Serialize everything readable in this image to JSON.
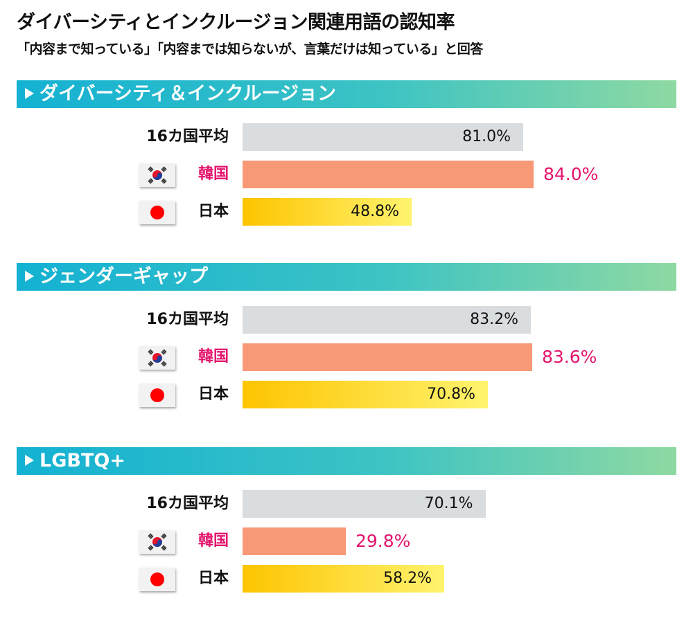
{
  "title": "ダイバーシティとインクルージョン関連用語の認知率",
  "subtitle": "「内容まで知っている」「内容までは知らないが、言葉だけは知っている」と回答",
  "colors": {
    "average": "#d9dde0",
    "korea": "#f79877",
    "japan_from": "#fdc400",
    "japan_to": "#fff36e",
    "korea_text": "#e4136c"
  },
  "chart_data": [
    {
      "type": "bar",
      "title": "ダイバーシティ＆インクルージョン",
      "categories": [
        "16カ国平均",
        "韓国",
        "日本"
      ],
      "values": [
        81.0,
        84.0,
        48.8
      ],
      "unit": "%"
    },
    {
      "type": "bar",
      "title": "ジェンダーギャップ",
      "categories": [
        "16カ国平均",
        "韓国",
        "日本"
      ],
      "values": [
        83.2,
        83.6,
        70.8
      ],
      "unit": "%"
    },
    {
      "type": "bar",
      "title": "LGBTQ+",
      "categories": [
        "16カ国平均",
        "韓国",
        "日本"
      ],
      "values": [
        70.1,
        29.8,
        58.2
      ],
      "unit": "%"
    }
  ]
}
